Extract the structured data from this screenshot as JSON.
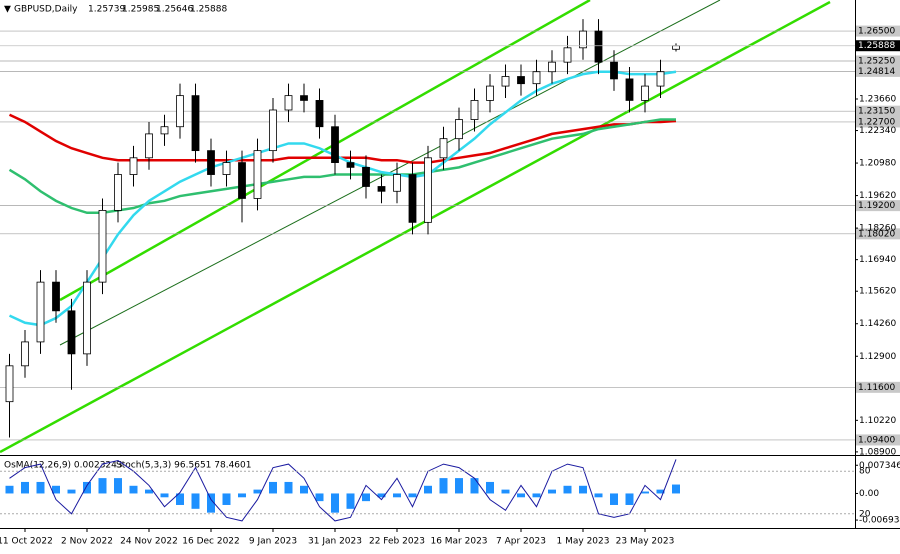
{
  "chart_data": {
    "type": "candlestick",
    "title": "GBPUSD,Daily",
    "categories": [
      null,
      "11 Oct 2022",
      null,
      null,
      null,
      "2 Nov 2022",
      null,
      null,
      null,
      "24 Nov 2022",
      null,
      null,
      null,
      "16 Dec 2022",
      null,
      null,
      null,
      "9 Jan 2023",
      null,
      null,
      null,
      "31 Jan 2023",
      null,
      null,
      null,
      "22 Feb 2023",
      null,
      null,
      null,
      "16 Mar 2023",
      null,
      null,
      null,
      "7 Apr 2023",
      null,
      null,
      null,
      "1 May 2023",
      null,
      null,
      null,
      "23 May 2023",
      null,
      null
    ],
    "open": [
      1.11,
      1.125,
      1.135,
      1.16,
      1.148,
      1.13,
      1.16,
      1.19,
      1.205,
      1.212,
      1.222,
      1.225,
      1.238,
      1.215,
      1.205,
      1.21,
      1.195,
      1.215,
      1.232,
      1.238,
      1.236,
      1.225,
      1.21,
      1.208,
      1.2,
      1.198,
      1.205,
      1.185,
      1.212,
      1.22,
      1.228,
      1.236,
      1.242,
      1.246,
      1.243,
      1.248,
      1.252,
      1.258,
      1.265,
      1.252,
      1.245,
      1.236,
      1.242,
      1.25739
    ],
    "high": [
      1.13,
      1.14,
      1.165,
      1.165,
      1.153,
      1.165,
      1.195,
      1.21,
      1.217,
      1.227,
      1.23,
      1.243,
      1.243,
      1.22,
      1.215,
      1.215,
      1.22,
      1.237,
      1.243,
      1.243,
      1.241,
      1.23,
      1.215,
      1.213,
      1.205,
      1.21,
      1.21,
      1.217,
      1.225,
      1.233,
      1.241,
      1.247,
      1.251,
      1.251,
      1.253,
      1.257,
      1.263,
      1.27,
      1.27,
      1.257,
      1.25,
      1.247,
      1.253,
      1.25985
    ],
    "low": [
      1.095,
      1.12,
      1.13,
      1.143,
      1.115,
      1.125,
      1.155,
      1.185,
      1.2,
      1.207,
      1.217,
      1.22,
      1.21,
      1.2,
      1.2,
      1.185,
      1.19,
      1.21,
      1.227,
      1.231,
      1.22,
      1.205,
      1.203,
      1.195,
      1.193,
      1.193,
      1.18,
      1.18,
      1.207,
      1.215,
      1.223,
      1.231,
      1.237,
      1.238,
      1.238,
      1.243,
      1.247,
      1.253,
      1.247,
      1.24,
      1.231,
      1.231,
      1.237,
      1.25646
    ],
    "close": [
      1.125,
      1.135,
      1.16,
      1.148,
      1.13,
      1.16,
      1.19,
      1.205,
      1.212,
      1.222,
      1.225,
      1.238,
      1.215,
      1.205,
      1.21,
      1.195,
      1.215,
      1.232,
      1.238,
      1.236,
      1.225,
      1.21,
      1.208,
      1.2,
      1.198,
      1.205,
      1.185,
      1.212,
      1.22,
      1.228,
      1.236,
      1.242,
      1.246,
      1.243,
      1.248,
      1.252,
      1.258,
      1.265,
      1.252,
      1.245,
      1.236,
      1.242,
      1.248,
      1.25888
    ],
    "series": [
      {
        "color": "#e00000",
        "values": [
          1.23,
          1.227,
          1.223,
          1.219,
          1.216,
          1.214,
          1.212,
          1.211,
          1.211,
          1.211,
          1.211,
          1.211,
          1.211,
          1.211,
          1.211,
          1.211,
          1.211,
          1.211,
          1.212,
          1.212,
          1.212,
          1.212,
          1.212,
          1.212,
          1.211,
          1.211,
          1.21,
          1.21,
          1.211,
          1.212,
          1.213,
          1.214,
          1.216,
          1.218,
          1.22,
          1.222,
          1.223,
          1.224,
          1.225,
          1.226,
          1.226,
          1.227,
          1.227,
          1.2274
        ]
      },
      {
        "color": "#2fbf6f",
        "values": [
          1.207,
          1.203,
          1.198,
          1.194,
          1.191,
          1.189,
          1.189,
          1.19,
          1.191,
          1.193,
          1.194,
          1.196,
          1.197,
          1.198,
          1.199,
          1.2,
          1.201,
          1.202,
          1.203,
          1.204,
          1.204,
          1.205,
          1.205,
          1.205,
          1.205,
          1.205,
          1.205,
          1.206,
          1.207,
          1.208,
          1.21,
          1.212,
          1.214,
          1.216,
          1.218,
          1.22,
          1.221,
          1.222,
          1.224,
          1.225,
          1.226,
          1.227,
          1.228,
          1.228
        ]
      },
      {
        "color": "#33d9ee",
        "values": [
          1.146,
          1.143,
          1.142,
          1.145,
          1.15,
          1.16,
          1.17,
          1.18,
          1.188,
          1.194,
          1.198,
          1.202,
          1.205,
          1.208,
          1.21,
          1.212,
          1.214,
          1.216,
          1.218,
          1.218,
          1.216,
          1.213,
          1.21,
          1.208,
          1.206,
          1.205,
          1.204,
          1.205,
          1.21,
          1.215,
          1.22,
          1.226,
          1.231,
          1.236,
          1.24,
          1.243,
          1.245,
          1.247,
          1.248,
          1.248,
          1.247,
          1.247,
          1.247,
          1.248
        ]
      }
    ],
    "ylim": [
      1.0877,
      1.278
    ],
    "yticks": [
      {
        "value": 1.2366,
        "label": "1.23660"
      },
      {
        "value": 1.2234,
        "label": "1.22340"
      },
      {
        "value": 1.2098,
        "label": "1.20980"
      },
      {
        "value": 1.1962,
        "label": "1.19620"
      },
      {
        "value": 1.1826,
        "label": "1.18260"
      },
      {
        "value": 1.1694,
        "label": "1.16940"
      },
      {
        "value": 1.1562,
        "label": "1.15620"
      },
      {
        "value": 1.1426,
        "label": "1.14260"
      },
      {
        "value": 1.129,
        "label": "1.12900"
      },
      {
        "value": 1.1022,
        "label": "1.10220"
      },
      {
        "value": 1.089,
        "label": "1.08900"
      }
    ],
    "levels": [
      {
        "value": 1.265,
        "label": "1.26500"
      },
      {
        "value": 1.2525,
        "label": "1.25250"
      },
      {
        "value": 1.24814,
        "label": "1.24814"
      },
      {
        "value": 1.2315,
        "label": "1.23150"
      },
      {
        "value": 1.227,
        "label": "1.22700"
      },
      {
        "value": 1.192,
        "label": "1.19200"
      },
      {
        "value": 1.1802,
        "label": "1.18020"
      },
      {
        "value": 1.116,
        "label": "1.11600"
      },
      {
        "value": 1.094,
        "label": "1.09400"
      }
    ],
    "current": {
      "value": 1.25888,
      "label": "1.25888"
    },
    "oscillator": {
      "osma_title": "OsMA(12,26,9) 0.0023243",
      "stoch_title": "Stoch(5,3,3) 96.5651 78.4601",
      "osma": [
        0.002,
        0.003,
        0.003,
        0.002,
        0.001,
        0.003,
        0.004,
        0.004,
        0.002,
        0.001,
        -0.001,
        -0.003,
        -0.004,
        -0.005,
        -0.003,
        -0.001,
        0.001,
        0.003,
        0.003,
        0.002,
        -0.002,
        -0.005,
        -0.004,
        -0.002,
        -0.001,
        -0.001,
        -0.001,
        0.002,
        0.004,
        0.004,
        0.004,
        0.003,
        0.001,
        -0.001,
        -0.001,
        0.001,
        0.002,
        0.002,
        -0.001,
        -0.003,
        -0.003,
        0.0005,
        0.001,
        0.0023243
      ],
      "osma_color": "#1e90ff",
      "stoch": [
        70,
        85,
        90,
        40,
        20,
        60,
        90,
        95,
        80,
        60,
        30,
        50,
        85,
        40,
        15,
        10,
        40,
        85,
        90,
        70,
        30,
        10,
        15,
        60,
        40,
        70,
        30,
        80,
        90,
        85,
        70,
        40,
        25,
        60,
        30,
        80,
        90,
        85,
        20,
        15,
        20,
        60,
        40,
        96.5651
      ],
      "stoch_color": "#1a1aa0",
      "ylim": [
        -0.009,
        0.0095
      ],
      "yticks": [
        0.0073466,
        {
          "value": 0,
          "label": "0.00"
        },
        -0.006934
      ],
      "stoch_lim": [
        0,
        100
      ],
      "stoch_ticks": [
        80,
        20
      ]
    }
  }
}
